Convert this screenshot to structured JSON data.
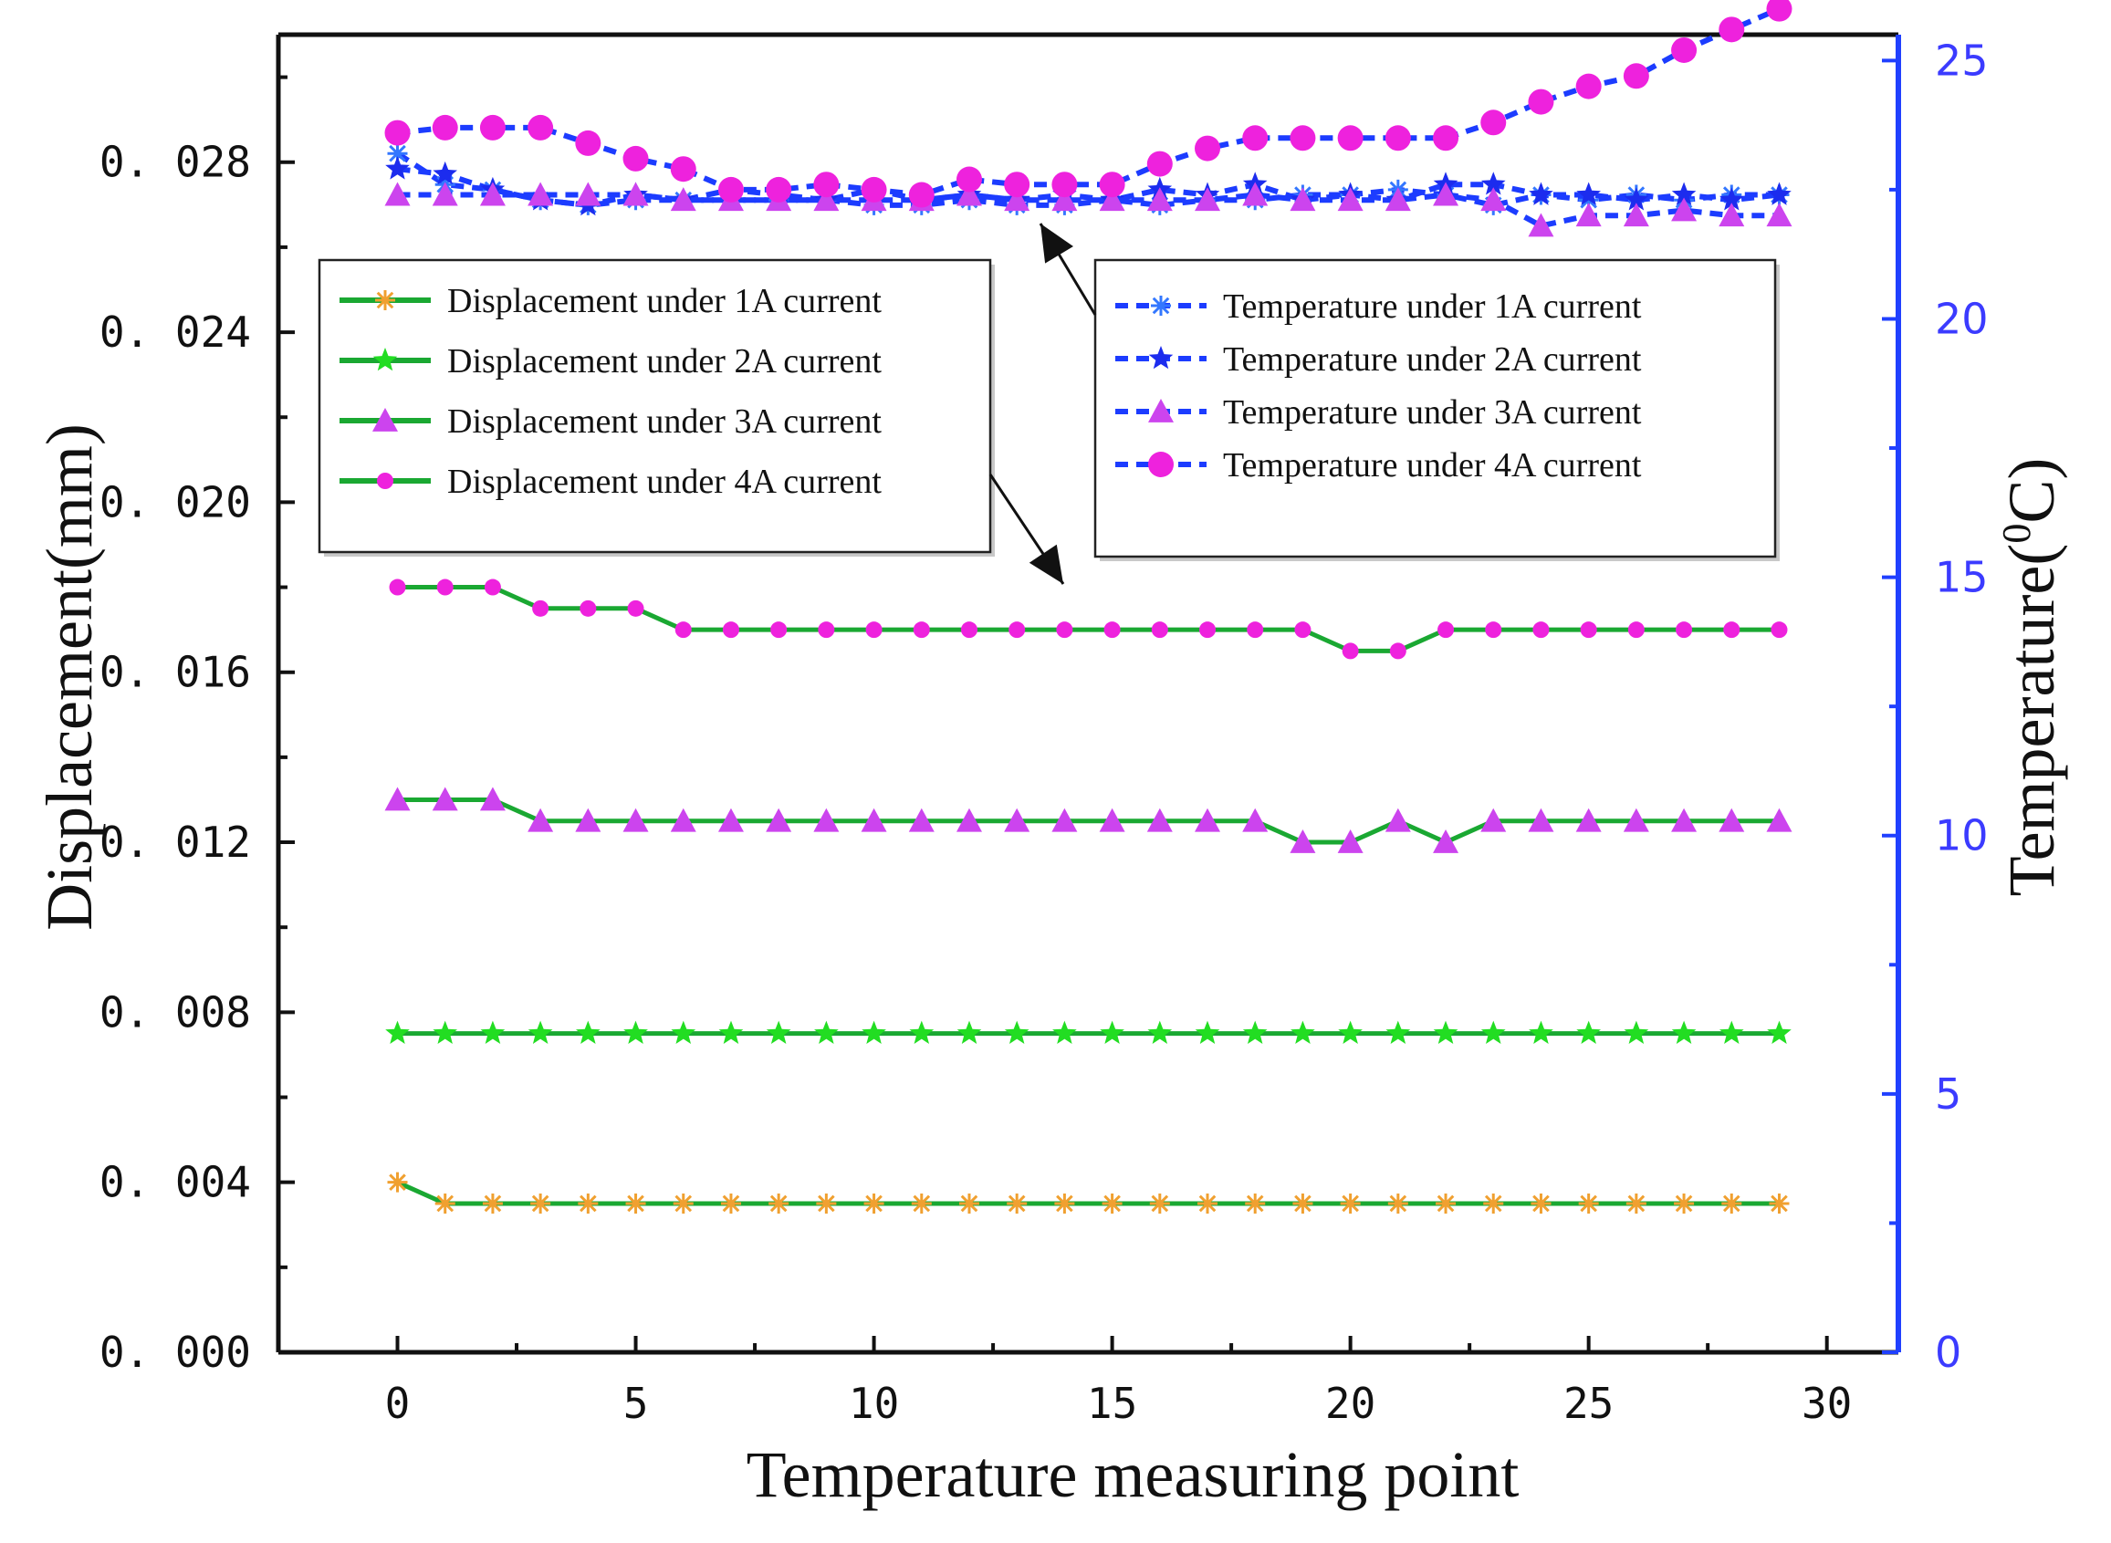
{
  "chart_data": {
    "type": "line",
    "title": "",
    "xlabel": "Temperature measuring point",
    "ylabel": "Displacement(mm)",
    "y2label_prefix": "Temperature(",
    "y2label_sup": "0",
    "y2label_suffix": "C)",
    "xlim": [
      -2.5,
      31.5
    ],
    "ylim": [
      0,
      0.031
    ],
    "y2lim": [
      0,
      25.5
    ],
    "xticks": [
      0,
      5,
      10,
      15,
      20,
      25,
      30
    ],
    "xtick_labels": [
      "0",
      "5",
      "10",
      "15",
      "20",
      "25",
      "30"
    ],
    "yticks": [
      0,
      0.004,
      0.008,
      0.012,
      0.016,
      0.02,
      0.024,
      0.028
    ],
    "ytick_labels": [
      "0. 000",
      "0. 004",
      "0. 008",
      "0. 012",
      "0. 016",
      "0. 020",
      "0. 024",
      "0. 028"
    ],
    "y2ticks": [
      0,
      5,
      10,
      15,
      20,
      25
    ],
    "y2tick_labels": [
      "0",
      "5",
      "10",
      "15",
      "20",
      "25"
    ],
    "x": [
      0,
      1,
      2,
      3,
      4,
      5,
      6,
      7,
      8,
      9,
      10,
      11,
      12,
      13,
      14,
      15,
      16,
      17,
      18,
      19,
      20,
      21,
      22,
      23,
      24,
      25,
      26,
      27,
      28,
      29
    ],
    "series": [
      {
        "name": "Displacement under 1A current",
        "axis": "left",
        "line_color": "#1aa832",
        "marker_color": "#f0a030",
        "marker": "asterisk",
        "values": [
          0.004,
          0.0035,
          0.0035,
          0.0035,
          0.0035,
          0.0035,
          0.0035,
          0.0035,
          0.0035,
          0.0035,
          0.0035,
          0.0035,
          0.0035,
          0.0035,
          0.0035,
          0.0035,
          0.0035,
          0.0035,
          0.0035,
          0.0035,
          0.0035,
          0.0035,
          0.0035,
          0.0035,
          0.0035,
          0.0035,
          0.0035,
          0.0035,
          0.0035,
          0.0035
        ]
      },
      {
        "name": "Displacement under 2A current",
        "axis": "left",
        "line_color": "#1aa832",
        "marker_color": "#22dd22",
        "marker": "star",
        "values": [
          0.0075,
          0.0075,
          0.0075,
          0.0075,
          0.0075,
          0.0075,
          0.0075,
          0.0075,
          0.0075,
          0.0075,
          0.0075,
          0.0075,
          0.0075,
          0.0075,
          0.0075,
          0.0075,
          0.0075,
          0.0075,
          0.0075,
          0.0075,
          0.0075,
          0.0075,
          0.0075,
          0.0075,
          0.0075,
          0.0075,
          0.0075,
          0.0075,
          0.0075,
          0.0075
        ]
      },
      {
        "name": "Displacement under 3A current",
        "axis": "left",
        "line_color": "#1aa832",
        "marker_color": "#cc44ee",
        "marker": "triangle",
        "values": [
          0.013,
          0.013,
          0.013,
          0.0125,
          0.0125,
          0.0125,
          0.0125,
          0.0125,
          0.0125,
          0.0125,
          0.0125,
          0.0125,
          0.0125,
          0.0125,
          0.0125,
          0.0125,
          0.0125,
          0.0125,
          0.0125,
          0.012,
          0.012,
          0.0125,
          0.012,
          0.0125,
          0.0125,
          0.0125,
          0.0125,
          0.0125,
          0.0125,
          0.0125
        ]
      },
      {
        "name": "Displacement under 4A current",
        "axis": "left",
        "line_color": "#1aa832",
        "marker_color": "#ee22dd",
        "marker": "circle-small",
        "values": [
          0.018,
          0.018,
          0.018,
          0.0175,
          0.0175,
          0.0175,
          0.017,
          0.017,
          0.017,
          0.017,
          0.017,
          0.017,
          0.017,
          0.017,
          0.017,
          0.017,
          0.017,
          0.017,
          0.017,
          0.017,
          0.0165,
          0.0165,
          0.017,
          0.017,
          0.017,
          0.017,
          0.017,
          0.017,
          0.017,
          0.017
        ]
      },
      {
        "name": "Temperature under 1A current",
        "axis": "right",
        "line_color": "#1c3cff",
        "marker_color": "#3377ff",
        "marker": "asterisk",
        "values": [
          23.2,
          22.6,
          22.5,
          22.3,
          22.2,
          22.3,
          22.3,
          22.3,
          22.3,
          22.3,
          22.2,
          22.2,
          22.3,
          22.2,
          22.2,
          22.3,
          22.2,
          22.3,
          22.3,
          22.4,
          22.4,
          22.5,
          22.4,
          22.2,
          22.4,
          22.3,
          22.4,
          22.3,
          22.4,
          22.4
        ]
      },
      {
        "name": "Temperature under 2A current",
        "axis": "right",
        "line_color": "#1c3cff",
        "marker_color": "#1c2cee",
        "marker": "star",
        "values": [
          22.9,
          22.8,
          22.5,
          22.3,
          22.2,
          22.4,
          22.3,
          22.5,
          22.4,
          22.3,
          22.5,
          22.3,
          22.4,
          22.3,
          22.4,
          22.3,
          22.5,
          22.4,
          22.6,
          22.3,
          22.4,
          22.3,
          22.6,
          22.6,
          22.4,
          22.4,
          22.3,
          22.4,
          22.3,
          22.4
        ]
      },
      {
        "name": "Temperature under 3A current",
        "axis": "right",
        "line_color": "#1c3cff",
        "marker_color": "#cc44ee",
        "marker": "triangle",
        "values": [
          22.4,
          22.4,
          22.4,
          22.4,
          22.4,
          22.4,
          22.3,
          22.3,
          22.3,
          22.3,
          22.3,
          22.3,
          22.4,
          22.3,
          22.3,
          22.3,
          22.3,
          22.3,
          22.4,
          22.3,
          22.3,
          22.3,
          22.4,
          22.3,
          21.8,
          22.0,
          22.0,
          22.1,
          22.0,
          22.0
        ]
      },
      {
        "name": "Temperature under 4A current",
        "axis": "right",
        "line_color": "#1c3cff",
        "marker_color": "#ee22dd",
        "marker": "circle",
        "values": [
          23.6,
          23.7,
          23.7,
          23.7,
          23.4,
          23.1,
          22.9,
          22.5,
          22.5,
          22.6,
          22.5,
          22.4,
          22.7,
          22.6,
          22.6,
          22.6,
          23.0,
          23.3,
          23.5,
          23.5,
          23.5,
          23.5,
          23.5,
          23.8,
          24.2,
          24.5,
          24.7,
          25.2,
          25.6,
          26.0
        ]
      }
    ],
    "legend_left_position": "upper-left",
    "legend_right_position": "upper-right",
    "colors": {
      "axis": "#111111",
      "right_axis": "#2040ff",
      "right_tick_text": "#3b3bff"
    }
  }
}
